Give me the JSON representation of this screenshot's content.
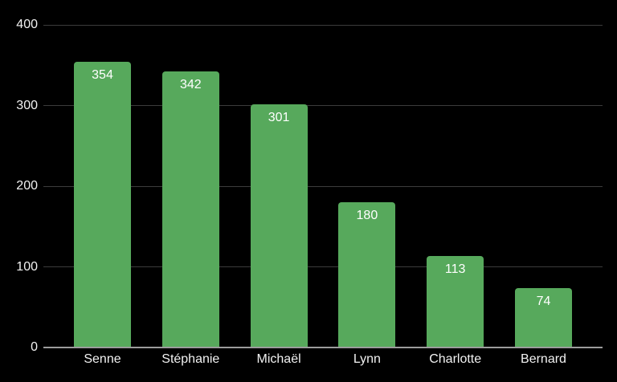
{
  "chart_data": {
    "type": "bar",
    "categories": [
      "Senne",
      "Stéphanie",
      "Michaël",
      "Lynn",
      "Charlotte",
      "Bernard"
    ],
    "values": [
      354,
      342,
      301,
      180,
      113,
      74
    ],
    "title": "",
    "xlabel": "",
    "ylabel": "",
    "ylim": [
      0,
      400
    ],
    "yticks": [
      0,
      100,
      200,
      300,
      400
    ],
    "grid": true,
    "legend": "none",
    "value_labels_inside_bars": true,
    "colors": {
      "background": "#000000",
      "bar_fill": "#57a95c",
      "gridline": "#3c3c3c",
      "baseline": "#9c9c9c",
      "tick_label": "#f2f2f2",
      "value_label": "#ffffff"
    }
  }
}
